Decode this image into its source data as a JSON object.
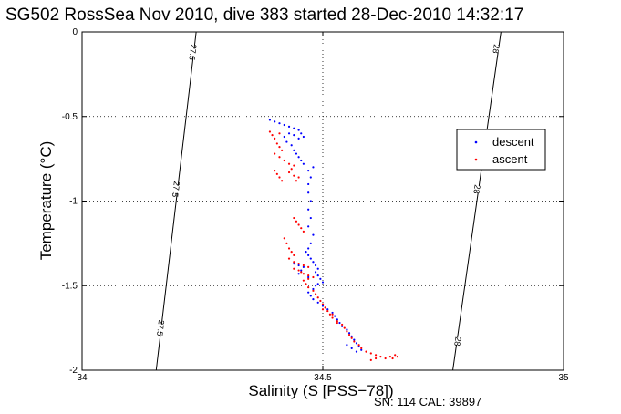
{
  "chart_data": {
    "type": "scatter",
    "title": "SG502 RossSea Nov 2010, dive 383 started 28-Dec-2010 14:32:17",
    "xlabel": "Salinity (S [PSS−78])",
    "ylabel": "Temperature (°C)",
    "xlim": [
      34,
      35
    ],
    "ylim": [
      -2,
      0
    ],
    "x_ticks": [
      34,
      34.5,
      35
    ],
    "x_tick_labels": [
      "34",
      "34.5",
      "35"
    ],
    "y_ticks": [
      0,
      -0.5,
      -1,
      -1.5,
      -2
    ],
    "y_tick_labels": [
      "0",
      "-0.5",
      "-1",
      "-1.5",
      "-2"
    ],
    "grid": true,
    "legend_position": "right",
    "footer": "SN: 114  CAL: 39897",
    "isopycnals": [
      {
        "label": "27.5",
        "points": [
          [
            34.154,
            -2.0
          ],
          [
            34.237,
            0.0
          ]
        ],
        "label_positions": [
          [
            34.163,
            -1.75
          ],
          [
            34.195,
            -0.93
          ],
          [
            34.23,
            -0.12
          ]
        ]
      },
      {
        "label": "28",
        "points": [
          [
            34.77,
            -2.0
          ],
          [
            34.87,
            0.0
          ]
        ],
        "label_positions": [
          [
            34.78,
            -1.83
          ],
          [
            34.82,
            -0.93
          ],
          [
            34.86,
            -0.1
          ]
        ]
      }
    ],
    "series": [
      {
        "name": "descent",
        "color": "#0000ff",
        "points": [
          [
            34.39,
            -0.52
          ],
          [
            34.4,
            -0.53
          ],
          [
            34.41,
            -0.54
          ],
          [
            34.42,
            -0.55
          ],
          [
            34.43,
            -0.56
          ],
          [
            34.44,
            -0.57
          ],
          [
            34.45,
            -0.58
          ],
          [
            34.455,
            -0.6
          ],
          [
            34.46,
            -0.62
          ],
          [
            34.45,
            -0.63
          ],
          [
            34.44,
            -0.61
          ],
          [
            34.43,
            -0.6
          ],
          [
            34.42,
            -0.62
          ],
          [
            34.425,
            -0.65
          ],
          [
            34.435,
            -0.67
          ],
          [
            34.44,
            -0.7
          ],
          [
            34.445,
            -0.72
          ],
          [
            34.45,
            -0.74
          ],
          [
            34.455,
            -0.76
          ],
          [
            34.46,
            -0.78
          ],
          [
            34.47,
            -0.82
          ],
          [
            34.475,
            -0.86
          ],
          [
            34.48,
            -0.8
          ],
          [
            34.47,
            -0.9
          ],
          [
            34.47,
            -0.95
          ],
          [
            34.475,
            -1.0
          ],
          [
            34.47,
            -1.05
          ],
          [
            34.475,
            -1.1
          ],
          [
            34.47,
            -1.15
          ],
          [
            34.48,
            -1.2
          ],
          [
            34.475,
            -1.25
          ],
          [
            34.47,
            -1.28
          ],
          [
            34.465,
            -1.3
          ],
          [
            34.47,
            -1.32
          ],
          [
            34.475,
            -1.34
          ],
          [
            34.48,
            -1.36
          ],
          [
            34.485,
            -1.38
          ],
          [
            34.49,
            -1.4
          ],
          [
            34.485,
            -1.42
          ],
          [
            34.49,
            -1.44
          ],
          [
            34.495,
            -1.46
          ],
          [
            34.5,
            -1.48
          ],
          [
            34.49,
            -1.49
          ],
          [
            34.485,
            -1.5
          ],
          [
            34.48,
            -1.52
          ],
          [
            34.47,
            -1.54
          ],
          [
            34.475,
            -1.56
          ],
          [
            34.48,
            -1.58
          ],
          [
            34.49,
            -1.6
          ],
          [
            34.5,
            -1.62
          ],
          [
            34.51,
            -1.64
          ],
          [
            34.52,
            -1.66
          ],
          [
            34.525,
            -1.68
          ],
          [
            34.53,
            -1.7
          ],
          [
            34.535,
            -1.72
          ],
          [
            34.54,
            -1.74
          ],
          [
            34.55,
            -1.76
          ],
          [
            34.555,
            -1.78
          ],
          [
            34.56,
            -1.8
          ],
          [
            34.565,
            -1.82
          ],
          [
            34.57,
            -1.84
          ],
          [
            34.575,
            -1.86
          ],
          [
            34.58,
            -1.88
          ],
          [
            34.57,
            -1.89
          ],
          [
            34.56,
            -1.87
          ],
          [
            34.55,
            -1.85
          ],
          [
            34.44,
            -1.37
          ],
          [
            34.45,
            -1.38
          ],
          [
            34.46,
            -1.39
          ],
          [
            34.455,
            -1.41
          ],
          [
            34.45,
            -1.43
          ],
          [
            34.47,
            -1.45
          ]
        ]
      },
      {
        "name": "ascent",
        "color": "#ff0000",
        "points": [
          [
            34.39,
            -0.59
          ],
          [
            34.395,
            -0.61
          ],
          [
            34.4,
            -0.63
          ],
          [
            34.41,
            -0.6
          ],
          [
            34.405,
            -0.66
          ],
          [
            34.41,
            -0.68
          ],
          [
            34.415,
            -0.7
          ],
          [
            34.4,
            -0.72
          ],
          [
            34.41,
            -0.74
          ],
          [
            34.42,
            -0.76
          ],
          [
            34.43,
            -0.78
          ],
          [
            34.44,
            -0.79
          ],
          [
            34.435,
            -0.81
          ],
          [
            34.43,
            -0.83
          ],
          [
            34.44,
            -0.85
          ],
          [
            34.45,
            -0.86
          ],
          [
            34.445,
            -0.88
          ],
          [
            34.4,
            -0.82
          ],
          [
            34.405,
            -0.84
          ],
          [
            34.41,
            -0.86
          ],
          [
            34.415,
            -0.88
          ],
          [
            34.44,
            -1.1
          ],
          [
            34.445,
            -1.12
          ],
          [
            34.45,
            -1.14
          ],
          [
            34.455,
            -1.16
          ],
          [
            34.46,
            -1.18
          ],
          [
            34.42,
            -1.22
          ],
          [
            34.425,
            -1.25
          ],
          [
            34.43,
            -1.28
          ],
          [
            34.435,
            -1.3
          ],
          [
            34.44,
            -1.32
          ],
          [
            34.43,
            -1.34
          ],
          [
            34.44,
            -1.36
          ],
          [
            34.45,
            -1.37
          ],
          [
            34.46,
            -1.38
          ],
          [
            34.47,
            -1.39
          ],
          [
            34.44,
            -1.4
          ],
          [
            34.45,
            -1.41
          ],
          [
            34.455,
            -1.42
          ],
          [
            34.46,
            -1.43
          ],
          [
            34.47,
            -1.44
          ],
          [
            34.48,
            -1.45
          ],
          [
            34.47,
            -1.46
          ],
          [
            34.46,
            -1.47
          ],
          [
            34.465,
            -1.49
          ],
          [
            34.47,
            -1.51
          ],
          [
            34.48,
            -1.53
          ],
          [
            34.485,
            -1.55
          ],
          [
            34.49,
            -1.57
          ],
          [
            34.495,
            -1.59
          ],
          [
            34.5,
            -1.61
          ],
          [
            34.505,
            -1.63
          ],
          [
            34.51,
            -1.65
          ],
          [
            34.515,
            -1.67
          ],
          [
            34.52,
            -1.69
          ],
          [
            34.53,
            -1.71
          ],
          [
            34.54,
            -1.73
          ],
          [
            34.545,
            -1.75
          ],
          [
            34.55,
            -1.77
          ],
          [
            34.555,
            -1.79
          ],
          [
            34.56,
            -1.81
          ],
          [
            34.565,
            -1.83
          ],
          [
            34.575,
            -1.85
          ],
          [
            34.58,
            -1.87
          ],
          [
            34.59,
            -1.89
          ],
          [
            34.6,
            -1.9
          ],
          [
            34.61,
            -1.91
          ],
          [
            34.62,
            -1.92
          ],
          [
            34.63,
            -1.93
          ],
          [
            34.64,
            -1.92
          ],
          [
            34.65,
            -1.91
          ],
          [
            34.655,
            -1.92
          ],
          [
            34.645,
            -1.93
          ],
          [
            34.6,
            -1.94
          ],
          [
            34.61,
            -1.93
          ],
          [
            34.5,
            -1.64
          ],
          [
            34.52,
            -1.67
          ],
          [
            34.53,
            -1.72
          ]
        ]
      }
    ]
  }
}
